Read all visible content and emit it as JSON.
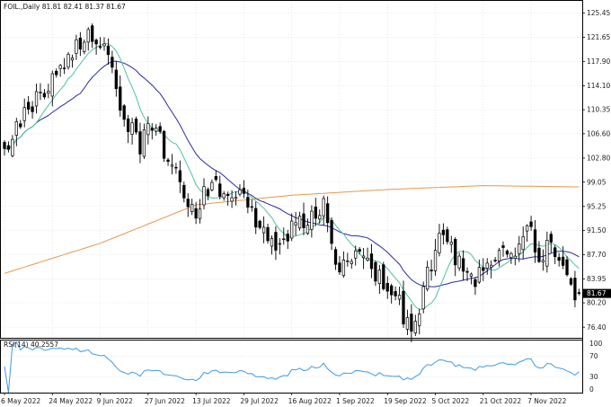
{
  "header": {
    "symbol_line": "FOIL.,Daily  81.81 82.41 81.37 81.67"
  },
  "rsi_label": "RSI(14) 40.2557",
  "current_price_label": "81.67",
  "colors": {
    "bull_body": "#ffffff",
    "bear_body": "#000000",
    "wick": "#000000",
    "ma_fast": "#4fc2a3",
    "ma_mid": "#2a2aa6",
    "ma_slow": "#e8964a",
    "rsi_line": "#3d9be9",
    "grid": "#cfd6dd",
    "frame": "#000000",
    "price_tag_bg": "#000000",
    "price_tag_text": "#ffffff"
  },
  "chart_data": {
    "type": "candlestick",
    "title": "FOIL.,Daily  81.81 82.41 81.37 81.67",
    "price_axis": {
      "ylim": [
        74.6,
        127.2
      ],
      "ticks": [
        "125.45",
        "121.65",
        "117.90",
        "114.10",
        "110.35",
        "106.60",
        "102.80",
        "99.05",
        "95.25",
        "91.50",
        "87.70",
        "83.95",
        "80.20",
        "76.40"
      ]
    },
    "x_tick_labels": [
      "6 May 2022",
      "24 May 2022",
      "9 Jun 2022",
      "27 Jun 2022",
      "13 Jul 2022",
      "29 Jul 2022",
      "16 Aug 2022",
      "1 Sep 2022",
      "19 Sep 2022",
      "5 Oct 2022",
      "21 Oct 2022",
      "7 Nov 2022"
    ],
    "x_tick_bar_index": [
      0,
      12,
      24,
      36,
      48,
      60,
      72,
      84,
      96,
      108,
      120,
      132
    ],
    "bar_count": 145,
    "close_trajectory": [
      [
        0,
        104.0
      ],
      [
        4,
        108.0
      ],
      [
        8,
        112.5
      ],
      [
        14,
        116.0
      ],
      [
        18,
        120.5
      ],
      [
        22,
        122.0
      ],
      [
        26,
        119.0
      ],
      [
        30,
        109.0
      ],
      [
        34,
        105.0
      ],
      [
        38,
        109.0
      ],
      [
        40,
        104.0
      ],
      [
        44,
        98.5
      ],
      [
        48,
        95.0
      ],
      [
        52,
        99.0
      ],
      [
        56,
        97.0
      ],
      [
        60,
        97.5
      ],
      [
        64,
        91.0
      ],
      [
        68,
        89.0
      ],
      [
        72,
        92.0
      ],
      [
        76,
        92.5
      ],
      [
        80,
        96.0
      ],
      [
        82,
        89.0
      ],
      [
        84,
        86.0
      ],
      [
        86,
        87.0
      ],
      [
        90,
        88.5
      ],
      [
        94,
        84.0
      ],
      [
        98,
        82.0
      ],
      [
        100,
        78.5
      ],
      [
        102,
        77.0
      ],
      [
        104,
        79.0
      ],
      [
        106,
        84.5
      ],
      [
        110,
        92.0
      ],
      [
        114,
        86.0
      ],
      [
        116,
        85.5
      ],
      [
        118,
        84.0
      ],
      [
        120,
        84.5
      ],
      [
        124,
        87.0
      ],
      [
        128,
        88.0
      ],
      [
        131,
        93.0
      ],
      [
        134,
        88.0
      ],
      [
        137,
        89.0
      ],
      [
        140,
        86.0
      ],
      [
        142,
        82.0
      ],
      [
        144,
        81.67
      ]
    ],
    "moving_averages": [
      {
        "period_hint": "fast",
        "color": "#4fc2a3"
      },
      {
        "period_hint": "medium",
        "color": "#2a2aa6"
      },
      {
        "period_hint": "slow",
        "color": "#e8964a"
      }
    ],
    "slow_ma_trajectory": [
      [
        0,
        84.8
      ],
      [
        24,
        89.5
      ],
      [
        48,
        95.5
      ],
      [
        72,
        97.0
      ],
      [
        96,
        97.9
      ],
      [
        120,
        98.5
      ],
      [
        144,
        98.3
      ]
    ],
    "rsi": {
      "period": 14,
      "last": 40.2557,
      "ylim": [
        0,
        100
      ],
      "ticks": [
        "100",
        "70",
        "30",
        "0"
      ]
    }
  }
}
